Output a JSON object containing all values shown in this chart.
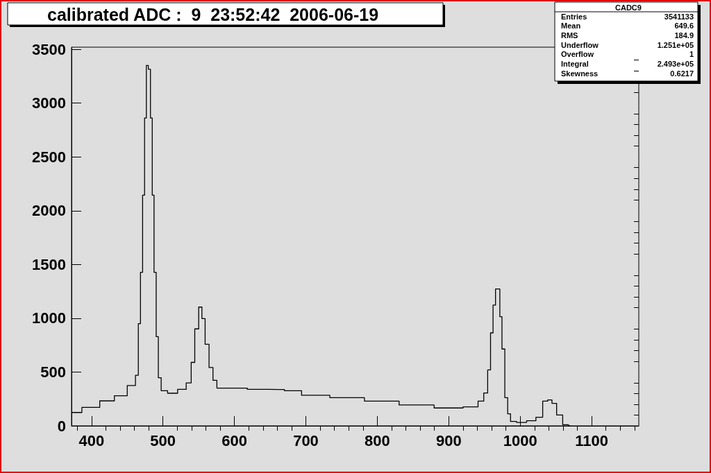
{
  "chart_data": {
    "type": "step",
    "title": "calibrated ADC :  9  23:52:42  2006-06-19",
    "marker": "none",
    "grid": false,
    "annotations": [
      "CADC9",
      "Entries",
      "3541133",
      "Mean",
      "649.6",
      "RMS",
      "184.9",
      "Underflow",
      "1.251e+05",
      "Overflow",
      "1",
      "Integral",
      "2.493e+05",
      "Skewness",
      "0.6217"
    ],
    "xlim": [
      372,
      1166
    ],
    "ylim": [
      0,
      3520
    ],
    "xticks": [
      {
        "value": 380,
        "label": null
      },
      400,
      {
        "value": 420,
        "label": null
      },
      {
        "value": 440,
        "label": null
      },
      {
        "value": 460,
        "label": null
      },
      {
        "value": 480,
        "label": null
      },
      500,
      {
        "value": 520,
        "label": null
      },
      {
        "value": 540,
        "label": null
      },
      {
        "value": 560,
        "label": null
      },
      {
        "value": 580,
        "label": null
      },
      600,
      {
        "value": 620,
        "label": null
      },
      {
        "value": 640,
        "label": null
      },
      {
        "value": 660,
        "label": null
      },
      {
        "value": 680,
        "label": null
      },
      700,
      {
        "value": 720,
        "label": null
      },
      {
        "value": 740,
        "label": null
      },
      {
        "value": 760,
        "label": null
      },
      {
        "value": 780,
        "label": null
      },
      800,
      {
        "value": 820,
        "label": null
      },
      {
        "value": 840,
        "label": null
      },
      {
        "value": 860,
        "label": null
      },
      {
        "value": 880,
        "label": null
      },
      900,
      {
        "value": 920,
        "label": null
      },
      {
        "value": 940,
        "label": null
      },
      {
        "value": 960,
        "label": null
      },
      {
        "value": 980,
        "label": null
      },
      1000,
      {
        "value": 1020,
        "label": null
      },
      {
        "value": 1040,
        "label": null
      },
      {
        "value": 1060,
        "label": null
      },
      {
        "value": 1080,
        "label": null
      },
      1100,
      {
        "value": 1120,
        "label": null
      },
      {
        "value": 1140,
        "label": null
      },
      {
        "value": 1160,
        "label": null
      }
    ],
    "yticks": [
      0,
      {
        "value": 100,
        "label": null
      },
      {
        "value": 200,
        "label": null
      },
      {
        "value": 300,
        "label": null
      },
      {
        "value": 400,
        "label": null
      },
      500,
      {
        "value": 600,
        "label": null
      },
      {
        "value": 700,
        "label": null
      },
      {
        "value": 800,
        "label": null
      },
      {
        "value": 900,
        "label": null
      },
      1000,
      {
        "value": 1100,
        "label": null
      },
      {
        "value": 1200,
        "label": null
      },
      {
        "value": 1300,
        "label": null
      },
      {
        "value": 1400,
        "label": null
      },
      1500,
      {
        "value": 1600,
        "label": null
      },
      {
        "value": 1700,
        "label": null
      },
      {
        "value": 1800,
        "label": null
      },
      {
        "value": 1900,
        "label": null
      },
      2000,
      {
        "value": 2100,
        "label": null
      },
      {
        "value": 2200,
        "label": null
      },
      {
        "value": 2300,
        "label": null
      },
      {
        "value": 2400,
        "label": null
      },
      2500,
      {
        "value": 2600,
        "label": null
      },
      {
        "value": 2700,
        "label": null
      },
      {
        "value": 2800,
        "label": null
      },
      {
        "value": 2900,
        "label": null
      },
      3000,
      {
        "value": 3100,
        "label": null
      },
      {
        "value": 3200,
        "label": null
      },
      {
        "value": 3300,
        "label": null
      },
      {
        "value": 3400,
        "label": null
      },
      3500
    ],
    "series": [
      {
        "color": "#000000",
        "x": [
          373,
          400,
          423,
          441,
          459,
          464,
          467,
          470,
          473,
          475.5,
          478,
          481,
          484,
          486,
          489,
          492,
          495,
          500,
          513,
          528,
          537,
          542,
          547,
          553,
          556,
          562,
          567,
          573,
          578,
          600,
          636,
          661,
          679,
          709,
          758,
          806,
          855,
          904,
          936,
          946,
          952,
          957,
          960,
          964,
          967,
          970,
          973,
          976,
          981,
          984,
          989,
          1001,
          1017,
          1027,
          1036,
          1041,
          1048,
          1054,
          1065,
          1070
        ],
        "values": [
          124,
          172,
          232,
          280,
          375,
          470,
          950,
          1427,
          2144,
          2861,
          3350,
          3315,
          2861,
          2144,
          1427,
          829,
          447,
          327,
          303,
          339,
          399,
          590,
          901,
          1104,
          997,
          758,
          542,
          423,
          351,
          351,
          339,
          338,
          327,
          284,
          262,
          230,
          194,
          166,
          176,
          230,
          305,
          520,
          864,
          1122,
          1273,
          1273,
          1015,
          714,
          262,
          112,
          41,
          32,
          47,
          80,
          230,
          241,
          209,
          101,
          11,
          0
        ]
      }
    ]
  }
}
